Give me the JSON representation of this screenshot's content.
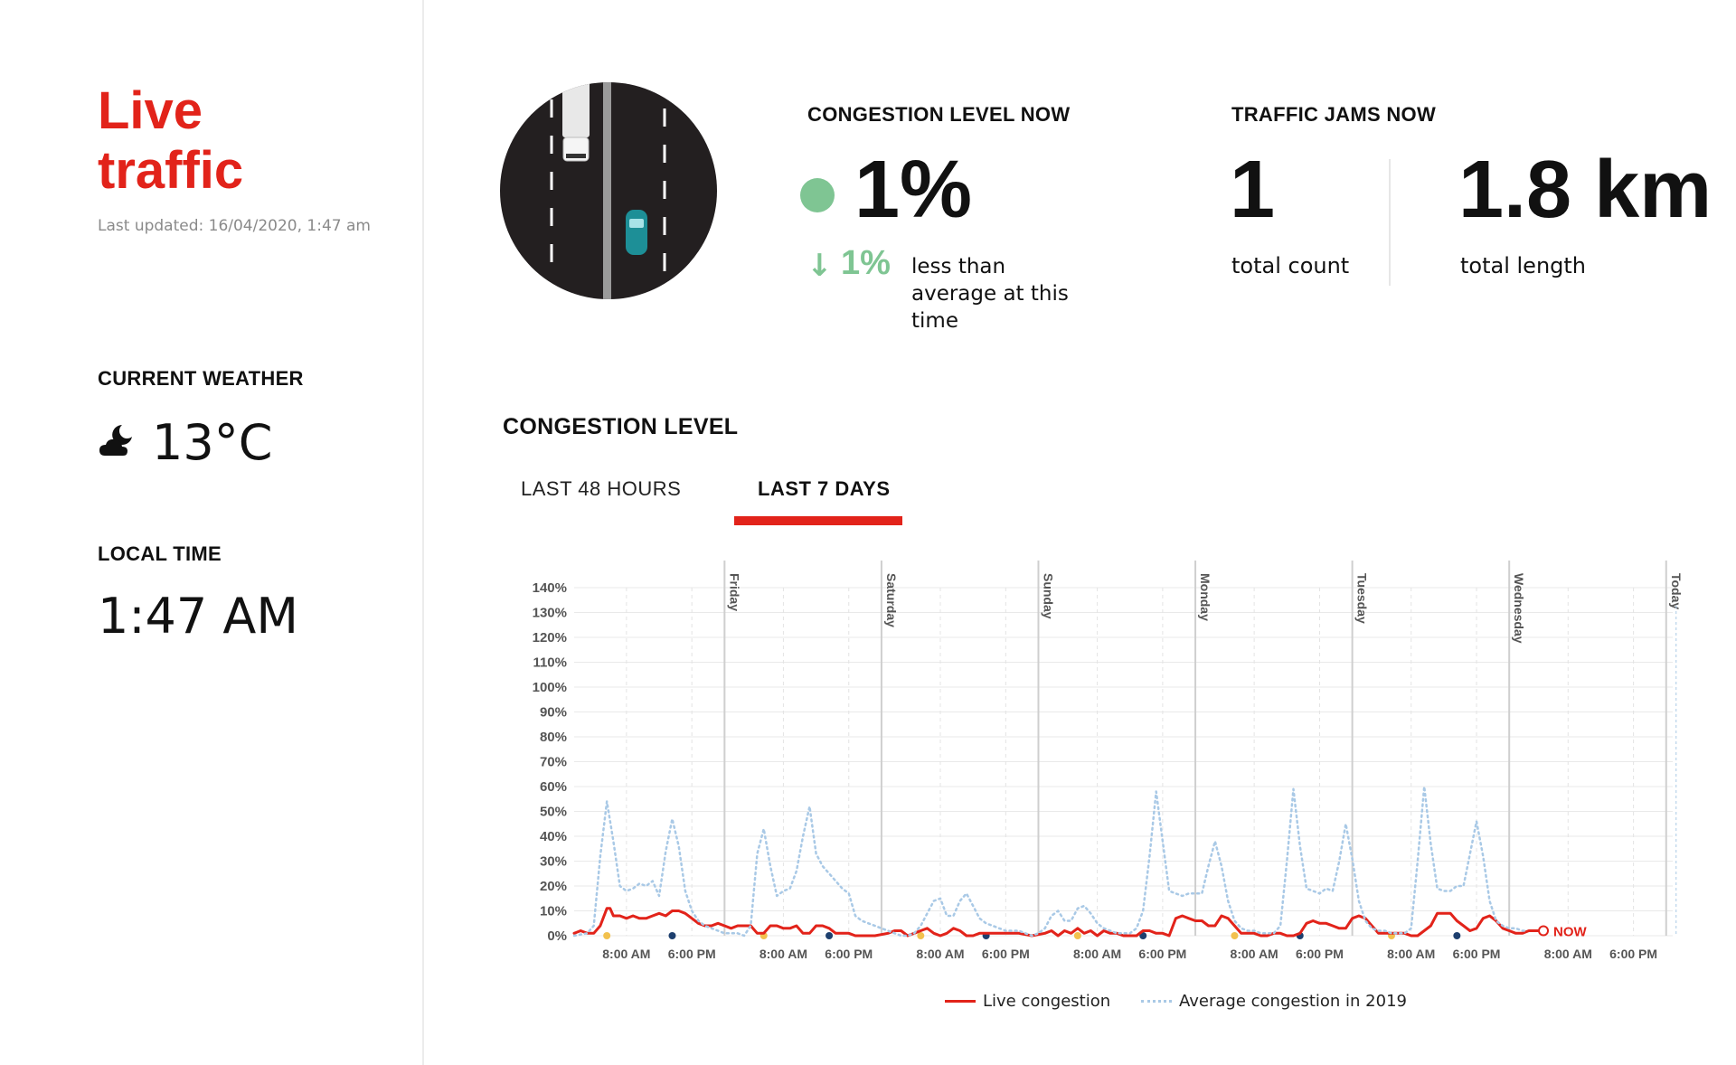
{
  "sidebar": {
    "title": "Live traffic",
    "last_updated": "Last updated: 16/04/2020, 1:47 am",
    "weather_heading": "CURRENT WEATHER",
    "weather_icon": "cloud-moon-icon",
    "temperature": "13°C",
    "local_time_heading": "LOCAL TIME",
    "local_time": "1:47 AM"
  },
  "congestion_now": {
    "heading": "CONGESTION LEVEL NOW",
    "value": "1%",
    "status_color": "#7fc593",
    "diff_arrow": "↓",
    "diff_value": "1%",
    "diff_text": "less than average at this time"
  },
  "jams_now": {
    "heading": "TRAFFIC JAMS NOW",
    "count": "1",
    "count_label": "total count",
    "length": "1.8 km",
    "length_label": "total length"
  },
  "chart_section": {
    "heading": "CONGESTION LEVEL",
    "tabs": [
      "LAST 48 HOURS",
      "LAST 7 DAYS"
    ],
    "active_tab": "LAST 7 DAYS",
    "now_label": "NOW",
    "legend": [
      "Live congestion",
      "Average congestion in 2019"
    ]
  },
  "colors": {
    "accent": "#e2231a",
    "green": "#7fc593",
    "avg_line": "#a9c9e6",
    "grid": "#e9e9e9"
  },
  "chart_data": {
    "type": "line",
    "y_tick_labels": [
      "0%",
      "10%",
      "20%",
      "30%",
      "40%",
      "50%",
      "60%",
      "70%",
      "80%",
      "90%",
      "100%",
      "110%",
      "120%",
      "130%",
      "140%"
    ],
    "ylim": [
      0,
      140
    ],
    "day_labels": [
      "Friday",
      "Saturday",
      "Sunday",
      "Monday",
      "Tuesday",
      "Wednesday",
      "Today"
    ],
    "time_tick_labels": [
      "8:00 AM",
      "6:00 PM"
    ],
    "x_unit": "hours since start of chart window",
    "xlim": [
      0,
      168
    ],
    "day_boundaries_h": [
      23,
      47,
      71,
      95,
      119,
      143,
      167
    ],
    "grid": true,
    "series": [
      {
        "name": "Live congestion",
        "color": "#e2231a",
        "style": "solid",
        "points": [
          [
            0,
            1
          ],
          [
            1,
            2
          ],
          [
            2,
            1
          ],
          [
            3,
            1
          ],
          [
            4,
            4
          ],
          [
            5,
            11
          ],
          [
            5.5,
            11
          ],
          [
            6,
            8
          ],
          [
            7,
            8
          ],
          [
            8,
            7
          ],
          [
            9,
            8
          ],
          [
            10,
            7
          ],
          [
            11,
            7
          ],
          [
            12,
            8
          ],
          [
            13,
            9
          ],
          [
            14,
            8
          ],
          [
            15,
            10
          ],
          [
            16,
            10
          ],
          [
            17,
            9
          ],
          [
            18,
            7
          ],
          [
            19,
            5
          ],
          [
            20,
            4
          ],
          [
            21,
            4
          ],
          [
            22,
            5
          ],
          [
            23,
            4
          ],
          [
            24,
            3
          ],
          [
            25,
            4
          ],
          [
            26,
            4
          ],
          [
            27,
            4
          ],
          [
            28,
            1
          ],
          [
            29,
            1
          ],
          [
            30,
            4
          ],
          [
            31,
            4
          ],
          [
            32,
            3
          ],
          [
            33,
            3
          ],
          [
            34,
            4
          ],
          [
            35,
            1
          ],
          [
            36,
            1
          ],
          [
            37,
            4
          ],
          [
            38,
            4
          ],
          [
            39,
            3
          ],
          [
            40,
            1
          ],
          [
            41,
            1
          ],
          [
            42,
            1
          ],
          [
            43,
            0
          ],
          [
            46,
            0
          ],
          [
            48,
            1
          ],
          [
            49,
            2
          ],
          [
            50,
            2
          ],
          [
            51,
            0
          ],
          [
            52,
            1
          ],
          [
            53,
            2
          ],
          [
            54,
            3
          ],
          [
            55,
            1
          ],
          [
            56,
            0
          ],
          [
            57,
            1
          ],
          [
            58,
            3
          ],
          [
            59,
            2
          ],
          [
            60,
            0
          ],
          [
            61,
            0
          ],
          [
            62,
            1
          ],
          [
            63,
            1
          ],
          [
            66,
            1
          ],
          [
            68,
            1
          ],
          [
            70,
            0
          ],
          [
            72,
            1
          ],
          [
            73,
            2
          ],
          [
            74,
            0
          ],
          [
            75,
            2
          ],
          [
            76,
            1
          ],
          [
            77,
            3
          ],
          [
            78,
            1
          ],
          [
            79,
            2
          ],
          [
            80,
            0
          ],
          [
            81,
            2
          ],
          [
            82,
            1
          ],
          [
            83,
            1
          ],
          [
            84,
            0
          ],
          [
            86,
            0
          ],
          [
            87,
            2
          ],
          [
            88,
            2
          ],
          [
            89,
            1
          ],
          [
            90,
            1
          ],
          [
            91,
            0
          ],
          [
            92,
            7
          ],
          [
            93,
            8
          ],
          [
            94,
            7
          ],
          [
            95,
            6
          ],
          [
            96,
            6
          ],
          [
            97,
            4
          ],
          [
            98,
            4
          ],
          [
            99,
            8
          ],
          [
            100,
            7
          ],
          [
            101,
            4
          ],
          [
            102,
            1
          ],
          [
            103,
            1
          ],
          [
            104,
            1
          ],
          [
            105,
            0
          ],
          [
            106,
            0
          ],
          [
            107,
            1
          ],
          [
            108,
            1
          ],
          [
            109,
            0
          ],
          [
            110,
            0
          ],
          [
            111,
            1
          ],
          [
            112,
            5
          ],
          [
            113,
            6
          ],
          [
            114,
            5
          ],
          [
            115,
            5
          ],
          [
            116,
            4
          ],
          [
            117,
            3
          ],
          [
            118,
            3
          ],
          [
            119,
            7
          ],
          [
            120,
            8
          ],
          [
            121,
            7
          ],
          [
            122,
            4
          ],
          [
            123,
            1
          ],
          [
            124,
            1
          ],
          [
            125,
            1
          ],
          [
            126,
            1
          ],
          [
            127,
            1
          ],
          [
            128,
            0
          ],
          [
            129,
            0
          ],
          [
            131,
            4
          ],
          [
            132,
            9
          ],
          [
            133,
            9
          ],
          [
            134,
            9
          ],
          [
            135,
            6
          ],
          [
            136,
            4
          ],
          [
            137,
            2
          ],
          [
            138,
            3
          ],
          [
            139,
            7
          ],
          [
            140,
            8
          ],
          [
            141,
            6
          ],
          [
            142,
            3
          ],
          [
            143,
            2
          ],
          [
            144,
            1
          ],
          [
            145,
            1
          ],
          [
            146,
            2
          ],
          [
            147,
            2
          ],
          [
            147.4,
            2
          ]
        ]
      },
      {
        "name": "Average congestion in 2019",
        "color": "#a9c9e6",
        "style": "dotted",
        "points": [
          [
            0,
            0
          ],
          [
            2,
            1
          ],
          [
            3,
            4
          ],
          [
            4,
            32
          ],
          [
            5,
            54
          ],
          [
            6,
            38
          ],
          [
            7,
            20
          ],
          [
            8,
            18
          ],
          [
            9,
            19
          ],
          [
            10,
            21
          ],
          [
            11,
            20
          ],
          [
            12,
            22
          ],
          [
            13,
            16
          ],
          [
            14,
            34
          ],
          [
            15,
            47
          ],
          [
            16,
            36
          ],
          [
            17,
            18
          ],
          [
            18,
            10
          ],
          [
            19,
            6
          ],
          [
            20,
            4
          ],
          [
            21,
            3
          ],
          [
            22,
            2
          ],
          [
            23,
            1
          ],
          [
            24,
            1
          ],
          [
            25,
            1
          ],
          [
            26,
            0
          ],
          [
            27,
            4
          ],
          [
            28,
            33
          ],
          [
            29,
            43
          ],
          [
            30,
            28
          ],
          [
            31,
            16
          ],
          [
            32,
            18
          ],
          [
            33,
            19
          ],
          [
            34,
            26
          ],
          [
            35,
            40
          ],
          [
            36,
            52
          ],
          [
            37,
            33
          ],
          [
            38,
            28
          ],
          [
            39,
            25
          ],
          [
            40,
            22
          ],
          [
            41,
            19
          ],
          [
            42,
            17
          ],
          [
            43,
            8
          ],
          [
            44,
            6
          ],
          [
            45,
            5
          ],
          [
            46,
            4
          ],
          [
            47,
            3
          ],
          [
            48,
            2
          ],
          [
            49,
            1
          ],
          [
            50,
            0
          ],
          [
            51,
            0
          ],
          [
            52,
            1
          ],
          [
            53,
            4
          ],
          [
            54,
            9
          ],
          [
            55,
            14
          ],
          [
            56,
            15
          ],
          [
            57,
            8
          ],
          [
            58,
            8
          ],
          [
            59,
            14
          ],
          [
            60,
            17
          ],
          [
            61,
            12
          ],
          [
            62,
            7
          ],
          [
            63,
            5
          ],
          [
            64,
            4
          ],
          [
            65,
            3
          ],
          [
            66,
            2
          ],
          [
            67,
            2
          ],
          [
            68,
            2
          ],
          [
            69,
            1
          ],
          [
            70,
            0
          ],
          [
            71,
            1
          ],
          [
            72,
            3
          ],
          [
            73,
            8
          ],
          [
            74,
            10
          ],
          [
            75,
            6
          ],
          [
            76,
            6
          ],
          [
            77,
            11
          ],
          [
            78,
            12
          ],
          [
            79,
            9
          ],
          [
            80,
            5
          ],
          [
            81,
            3
          ],
          [
            82,
            2
          ],
          [
            83,
            1
          ],
          [
            84,
            1
          ],
          [
            85,
            1
          ],
          [
            86,
            3
          ],
          [
            87,
            10
          ],
          [
            88,
            32
          ],
          [
            89,
            58
          ],
          [
            90,
            38
          ],
          [
            91,
            18
          ],
          [
            92,
            17
          ],
          [
            93,
            16
          ],
          [
            94,
            17
          ],
          [
            95,
            17
          ],
          [
            96,
            17
          ],
          [
            97,
            28
          ],
          [
            98,
            38
          ],
          [
            99,
            28
          ],
          [
            100,
            14
          ],
          [
            101,
            6
          ],
          [
            102,
            3
          ],
          [
            103,
            2
          ],
          [
            104,
            2
          ],
          [
            105,
            1
          ],
          [
            106,
            1
          ],
          [
            107,
            1
          ],
          [
            108,
            4
          ],
          [
            109,
            30
          ],
          [
            110,
            59
          ],
          [
            111,
            36
          ],
          [
            112,
            19
          ],
          [
            113,
            18
          ],
          [
            114,
            17
          ],
          [
            115,
            19
          ],
          [
            116,
            18
          ],
          [
            117,
            30
          ],
          [
            118,
            45
          ],
          [
            119,
            31
          ],
          [
            120,
            14
          ],
          [
            121,
            6
          ],
          [
            122,
            3
          ],
          [
            123,
            2
          ],
          [
            124,
            2
          ],
          [
            125,
            1
          ],
          [
            126,
            1
          ],
          [
            127,
            1
          ],
          [
            128,
            3
          ],
          [
            129,
            30
          ],
          [
            130,
            60
          ],
          [
            131,
            37
          ],
          [
            132,
            19
          ],
          [
            133,
            18
          ],
          [
            134,
            18
          ],
          [
            135,
            20
          ],
          [
            136,
            20
          ],
          [
            137,
            33
          ],
          [
            138,
            46
          ],
          [
            139,
            32
          ],
          [
            140,
            14
          ],
          [
            141,
            6
          ],
          [
            142,
            4
          ],
          [
            143,
            3
          ],
          [
            144,
            3
          ],
          [
            145,
            2
          ],
          [
            145.5,
            2
          ]
        ]
      }
    ],
    "day_markers_h": [
      [
        5,
        "#f2c14e"
      ],
      [
        15,
        "#1d3f6e"
      ],
      [
        29,
        "#f2c14e"
      ],
      [
        39,
        "#1d3f6e"
      ],
      [
        53,
        "#f2c14e"
      ],
      [
        63,
        "#1d3f6e"
      ],
      [
        77,
        "#f2c14e"
      ],
      [
        87,
        "#1d3f6e"
      ],
      [
        101,
        "#f2c14e"
      ],
      [
        111,
        "#1d3f6e"
      ],
      [
        125,
        "#f2c14e"
      ],
      [
        135,
        "#1d3f6e"
      ]
    ]
  }
}
